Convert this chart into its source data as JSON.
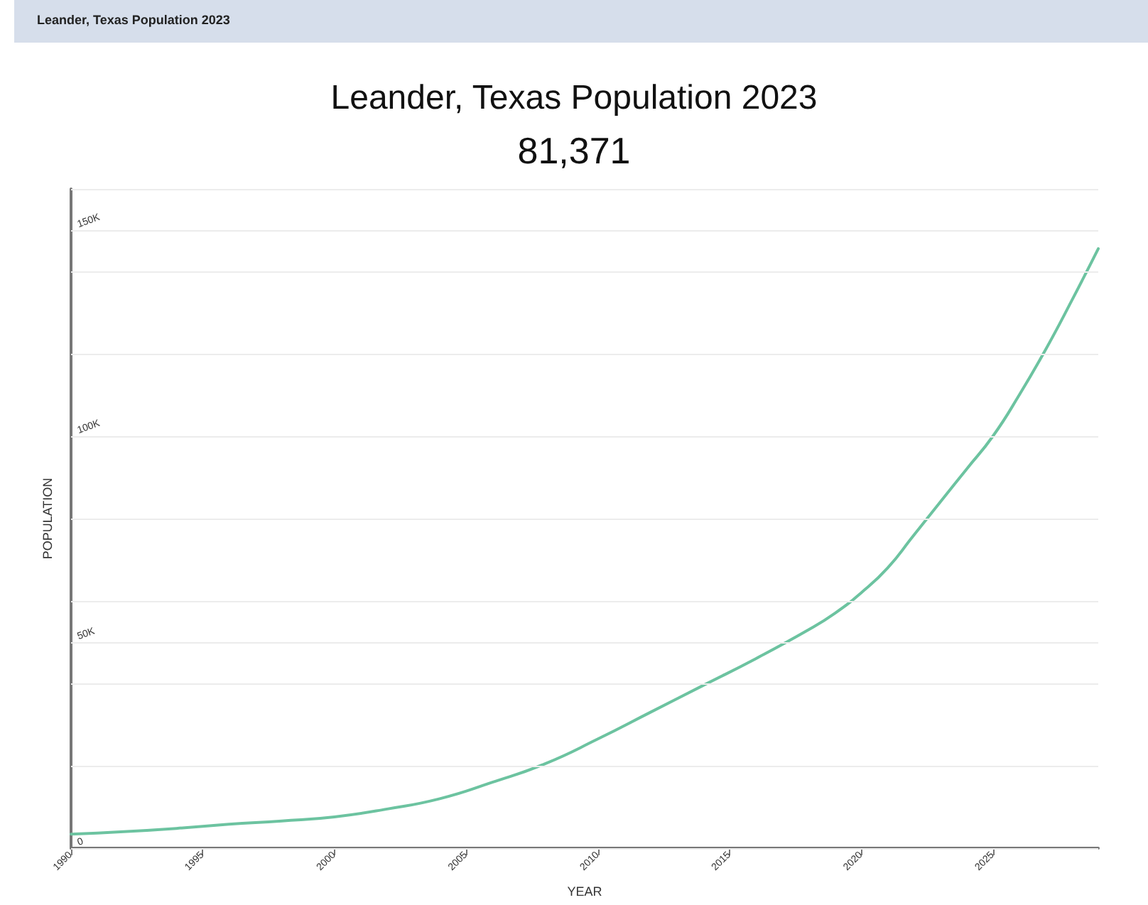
{
  "chart_data": {
    "type": "line",
    "title": "Leander, Texas Population 2023",
    "subtitle": "81,371",
    "xlabel": "YEAR",
    "ylabel": "POPULATION",
    "annotations": [
      "Leander, Texas Population 2023"
    ],
    "series": [
      {
        "color": "#6cc3a0",
        "x": [
          1990,
          1992,
          1994,
          1996,
          1998,
          2000,
          2002,
          2004,
          2006,
          2008,
          2010,
          2012,
          2014,
          2016,
          2018,
          2019,
          2020,
          2021,
          2022,
          2023,
          2024,
          2025,
          2026,
          2027,
          2028,
          2029
        ],
        "values": [
          3400,
          4000,
          4800,
          5800,
          6600,
          7600,
          9500,
          12000,
          16000,
          20500,
          26500,
          33000,
          39500,
          46000,
          53000,
          57000,
          62000,
          68000,
          76000,
          84000,
          92000,
          100000,
          110000,
          121000,
          133000,
          145500
        ]
      }
    ],
    "xlim": [
      1990,
      2029
    ],
    "xticks": [
      1990,
      1995,
      2000,
      2005,
      2010,
      2015,
      2020,
      2025
    ],
    "ylim": [
      0,
      160000
    ],
    "yticks": [
      {
        "value": 0,
        "label": "0"
      },
      {
        "value": 20000,
        "label": null
      },
      {
        "value": 40000,
        "label": null
      },
      {
        "value": 50000,
        "label": "50K"
      },
      {
        "value": 60000,
        "label": null
      },
      {
        "value": 80000,
        "label": null
      },
      {
        "value": 100000,
        "label": "100K"
      },
      {
        "value": 120000,
        "label": null
      },
      {
        "value": 140000,
        "label": null
      },
      {
        "value": 150000,
        "label": "150K"
      },
      {
        "value": 160000,
        "label": null
      }
    ],
    "grid": "y",
    "marker": "none",
    "line_style": "solid"
  }
}
